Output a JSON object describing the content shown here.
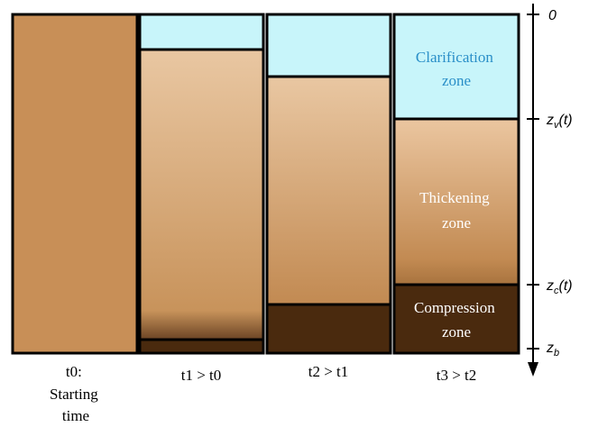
{
  "columns": [
    {
      "label": [
        "t0:",
        "Starting",
        "time"
      ]
    },
    {
      "label": [
        "t1 > t0"
      ]
    },
    {
      "label": [
        "t2 > t1"
      ]
    },
    {
      "label": [
        "t3 > t2"
      ]
    }
  ],
  "zones": {
    "clarification": [
      "Clarification",
      "zone"
    ],
    "thickening": [
      "Thickening",
      "zone"
    ],
    "compression": [
      "Compression",
      "zone"
    ]
  },
  "axis": {
    "top": "0",
    "zv": {
      "main": "z",
      "sub": "v",
      "suffix": "(t)"
    },
    "zc": {
      "main": "z",
      "sub": "c",
      "suffix": "(t)"
    },
    "zb": {
      "main": "z",
      "sub": "b"
    }
  }
}
